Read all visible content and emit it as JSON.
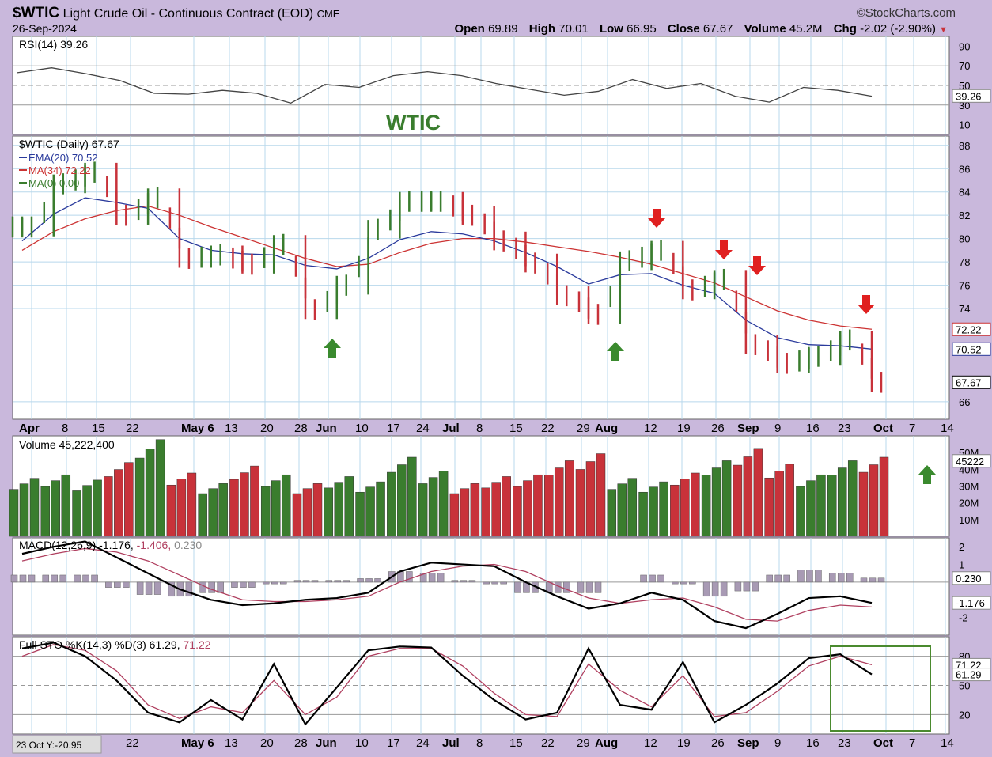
{
  "header": {
    "symbol": "$WTIC",
    "description": "Light Crude Oil - Continuous Contract (EOD)",
    "exchange": "CME",
    "date": "26-Sep-2024",
    "brand": "©StockCharts.com",
    "open_label": "Open",
    "open": "69.89",
    "high_label": "High",
    "high": "70.01",
    "low_label": "Low",
    "low": "66.95",
    "close_label": "Close",
    "close": "67.67",
    "volume_label": "Volume",
    "volume": "45.2M",
    "chg_label": "Chg",
    "chg": "-2.02 (-2.90%)"
  },
  "annotation_title": "WTIC",
  "cursor_readout": "23 Oct Y:-20.95",
  "colors": {
    "up": "#3a7d2e",
    "down": "#c8323a",
    "ema": "#2a3a9c",
    "ma": "#cc3333",
    "panel": "#ffffff",
    "grid": "#b8d8ec",
    "arrow_up": "#3a8a2e",
    "arrow_down": "#e02020",
    "box": "#4a8a2e"
  },
  "chart_data": [
    {
      "type": "line",
      "name": "rsi",
      "title": "RSI(14) 39.26",
      "ylim": [
        0,
        100
      ],
      "y_ticks": [
        "90",
        "70",
        "50",
        "30",
        "10"
      ],
      "last_label": "39.26",
      "x": [
        "Apr 1",
        "Apr 8",
        "Apr 15",
        "Apr 22",
        "May 6",
        "May 13",
        "May 20",
        "May 28",
        "Jun 3",
        "Jun 10",
        "Jun 17",
        "Jun 24",
        "Jul 1",
        "Jul 8",
        "Jul 15",
        "Jul 22",
        "Jul 29",
        "Aug 5",
        "Aug 12",
        "Aug 19",
        "Aug 26",
        "Sep 3",
        "Sep 9",
        "Sep 16",
        "Sep 23",
        "Sep 26"
      ],
      "values": [
        63,
        68,
        62,
        55,
        42,
        41,
        45,
        42,
        32,
        51,
        48,
        60,
        64,
        60,
        52,
        46,
        40,
        44,
        56,
        47,
        52,
        39,
        33,
        48,
        45,
        39
      ]
    },
    {
      "type": "bar",
      "name": "price",
      "title": "$WTIC (Daily) 67.67",
      "legend": [
        "EMA(20) 70.52",
        "MA(34) 72.22",
        "MA(0) 0.00"
      ],
      "ylim": [
        64.5,
        88.8
      ],
      "y_ticks": [
        "88",
        "86",
        "84",
        "82",
        "80",
        "78",
        "76",
        "74",
        "66"
      ],
      "last_labels": [
        "72.22",
        "70.52",
        "67.67"
      ],
      "x_ticks": [
        "Apr",
        "8",
        "15",
        "22",
        "May 6",
        "13",
        "20",
        "28",
        "Jun",
        "10",
        "17",
        "24",
        "Jul",
        "8",
        "15",
        "22",
        "29",
        "Aug",
        "12",
        "19",
        "26",
        "Sep",
        "9",
        "16",
        "23",
        "Oct",
        "7",
        "14"
      ],
      "close": [
        81.0,
        84.7,
        85.7,
        82.0,
        83.5,
        78.3,
        78.6,
        77.8,
        79.5,
        73.9,
        76.0,
        80.8,
        83.2,
        83.2,
        82.0,
        79.8,
        77.9,
        75.1,
        73.5,
        78.1,
        79.0,
        75.6,
        76.5,
        70.9,
        69.3,
        69.9,
        71.3,
        67.67
      ],
      "ema20": [
        79.8,
        82.1,
        83.5,
        83.1,
        82.6,
        80.0,
        79.0,
        78.7,
        78.6,
        77.7,
        77.4,
        78.3,
        79.9,
        80.6,
        80.4,
        79.8,
        78.8,
        77.6,
        76.1,
        76.9,
        77.0,
        76.0,
        75.3,
        73.0,
        71.5,
        70.9,
        70.8,
        70.52
      ],
      "ma34": [
        79.0,
        80.6,
        81.7,
        82.4,
        82.8,
        82.0,
        81.0,
        80.1,
        79.2,
        78.3,
        77.6,
        77.8,
        78.8,
        79.6,
        80.0,
        80.0,
        79.7,
        79.3,
        78.9,
        78.4,
        77.8,
        77.0,
        76.2,
        75.0,
        73.8,
        73.0,
        72.5,
        72.22
      ],
      "signals": [
        {
          "dir": "up",
          "date": "Jun 4"
        },
        {
          "dir": "up",
          "date": "Aug 5"
        },
        {
          "dir": "down",
          "date": "Aug 13"
        },
        {
          "dir": "down",
          "date": "Aug 27"
        },
        {
          "dir": "down",
          "date": "Sep 3"
        },
        {
          "dir": "down",
          "date": "Sep 27"
        }
      ]
    },
    {
      "type": "bar",
      "name": "volume",
      "title": "Volume 45,222,400",
      "ylim": [
        0,
        60
      ],
      "y_ticks": [
        "50M",
        "40M",
        "30M",
        "20M",
        "10M"
      ],
      "last_label": "45222",
      "values": [
        33,
        35,
        32,
        42,
        55,
        36,
        30,
        40,
        35,
        30,
        34,
        31,
        45,
        37,
        30,
        34,
        35,
        43,
        47,
        33,
        31,
        36,
        43,
        50,
        41,
        35,
        43,
        45
      ]
    },
    {
      "type": "line",
      "name": "macd",
      "title": "MACD(12,26,9)",
      "title_values": [
        "-1.176",
        "-1.406",
        "0.230"
      ],
      "ylim": [
        -3,
        2.5
      ],
      "y_ticks": [
        "2",
        "1",
        "-2"
      ],
      "last_labels": [
        "0.230",
        "-1.176"
      ],
      "macd": [
        1.6,
        2.0,
        2.3,
        1.4,
        0.5,
        -0.4,
        -1.0,
        -1.3,
        -1.2,
        -1.0,
        -0.9,
        -0.6,
        0.6,
        1.1,
        1.0,
        0.9,
        0.0,
        -0.8,
        -1.5,
        -1.2,
        -0.6,
        -1.0,
        -2.2,
        -2.6,
        -1.8,
        -0.9,
        -0.8,
        -1.176
      ],
      "signal": [
        1.2,
        1.6,
        1.9,
        1.7,
        1.2,
        0.4,
        -0.4,
        -1.0,
        -1.1,
        -1.1,
        -1.0,
        -0.8,
        0.0,
        0.6,
        0.9,
        1.0,
        0.6,
        -0.2,
        -0.9,
        -1.2,
        -1.0,
        -0.9,
        -1.4,
        -2.1,
        -2.2,
        -1.6,
        -1.3,
        -1.406
      ],
      "hist": [
        0.4,
        0.4,
        0.4,
        -0.3,
        -0.7,
        -0.8,
        -0.6,
        -0.3,
        -0.1,
        0.1,
        0.1,
        0.2,
        0.6,
        0.5,
        0.1,
        -0.1,
        -0.6,
        -0.6,
        -0.6,
        0.0,
        0.4,
        -0.1,
        -0.8,
        -0.5,
        0.4,
        0.7,
        0.5,
        0.23
      ]
    },
    {
      "type": "line",
      "name": "stochastic",
      "title": "Full STO %K(14,3) %D(3)",
      "title_values": [
        "61.29",
        "71.22"
      ],
      "ylim": [
        0,
        100
      ],
      "y_ticks": [
        "80",
        "50",
        "20"
      ],
      "last_labels": [
        "71.22",
        "61.29"
      ],
      "k": [
        88,
        94,
        80,
        55,
        22,
        12,
        35,
        15,
        72,
        10,
        48,
        86,
        90,
        89,
        60,
        35,
        15,
        22,
        88,
        30,
        25,
        74,
        12,
        30,
        52,
        78,
        82,
        61.29
      ],
      "d": [
        80,
        92,
        86,
        65,
        30,
        16,
        28,
        22,
        55,
        20,
        38,
        80,
        88,
        88,
        70,
        42,
        20,
        18,
        72,
        45,
        28,
        60,
        18,
        22,
        44,
        70,
        80,
        71.22
      ]
    }
  ]
}
